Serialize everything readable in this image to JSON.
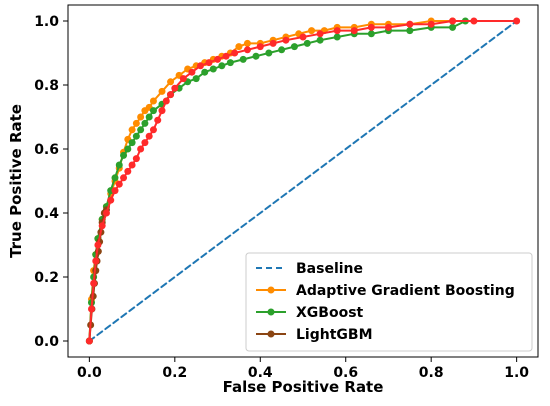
{
  "chart_data": {
    "type": "line",
    "title": "",
    "xlabel": "False Positive Rate",
    "ylabel": "True Positive Rate",
    "xlim": [
      -0.05,
      1.05
    ],
    "ylim": [
      -0.05,
      1.05
    ],
    "x_ticks": [
      "0.0",
      "0.2",
      "0.4",
      "0.6",
      "0.8",
      "1.0"
    ],
    "y_ticks": [
      "0.0",
      "0.2",
      "0.4",
      "0.6",
      "0.8",
      "1.0"
    ],
    "grid": false,
    "legend_position": "lower-right",
    "series": [
      {
        "name": "Baseline",
        "color": "#1f77b4",
        "style": "dashed",
        "markers": false,
        "x": [
          0,
          1
        ],
        "y": [
          0,
          1
        ]
      },
      {
        "name": "Adaptive Gradient Boosting",
        "color": "#ff8c00",
        "style": "solid",
        "markers": true,
        "x": [
          0,
          0.005,
          0.01,
          0.015,
          0.02,
          0.03,
          0.04,
          0.05,
          0.06,
          0.07,
          0.08,
          0.09,
          0.1,
          0.11,
          0.12,
          0.13,
          0.14,
          0.15,
          0.17,
          0.19,
          0.21,
          0.23,
          0.25,
          0.27,
          0.29,
          0.31,
          0.33,
          0.35,
          0.37,
          0.4,
          0.43,
          0.46,
          0.49,
          0.52,
          0.55,
          0.58,
          0.62,
          0.66,
          0.7,
          0.75,
          0.8,
          0.85
        ],
        "y": [
          0,
          0.13,
          0.22,
          0.27,
          0.32,
          0.38,
          0.42,
          0.46,
          0.5,
          0.54,
          0.59,
          0.63,
          0.66,
          0.68,
          0.7,
          0.72,
          0.73,
          0.75,
          0.78,
          0.81,
          0.83,
          0.85,
          0.86,
          0.87,
          0.88,
          0.89,
          0.9,
          0.92,
          0.93,
          0.93,
          0.94,
          0.95,
          0.96,
          0.97,
          0.97,
          0.98,
          0.98,
          0.99,
          0.99,
          0.99,
          1.0,
          1.0
        ]
      },
      {
        "name": "XGBoost",
        "color": "#2ca02c",
        "style": "solid",
        "markers": true,
        "x": [
          0,
          0.005,
          0.01,
          0.015,
          0.02,
          0.03,
          0.04,
          0.05,
          0.06,
          0.07,
          0.08,
          0.09,
          0.1,
          0.11,
          0.12,
          0.13,
          0.14,
          0.15,
          0.17,
          0.19,
          0.21,
          0.23,
          0.25,
          0.27,
          0.29,
          0.31,
          0.33,
          0.36,
          0.39,
          0.42,
          0.45,
          0.48,
          0.51,
          0.54,
          0.58,
          0.62,
          0.66,
          0.7,
          0.75,
          0.8,
          0.85,
          0.88
        ],
        "y": [
          0,
          0.12,
          0.2,
          0.27,
          0.32,
          0.38,
          0.42,
          0.47,
          0.51,
          0.55,
          0.58,
          0.6,
          0.62,
          0.64,
          0.66,
          0.68,
          0.7,
          0.72,
          0.74,
          0.77,
          0.79,
          0.81,
          0.82,
          0.84,
          0.85,
          0.86,
          0.87,
          0.88,
          0.89,
          0.9,
          0.91,
          0.92,
          0.93,
          0.94,
          0.95,
          0.96,
          0.96,
          0.97,
          0.97,
          0.98,
          0.98,
          1.0
        ]
      },
      {
        "name": "LightGBM",
        "color": "#8b4513",
        "style": "solid",
        "markers": true,
        "x": [
          0,
          0.003,
          0.006,
          0.009,
          0.012,
          0.015,
          0.018,
          0.021,
          0.024,
          0.027,
          0.03,
          0.035,
          0.04
        ],
        "y": [
          0,
          0.05,
          0.1,
          0.14,
          0.18,
          0.22,
          0.25,
          0.28,
          0.31,
          0.34,
          0.37,
          0.4,
          0.41
        ]
      },
      {
        "name": "",
        "color": "#ff2a2a",
        "style": "solid",
        "markers": true,
        "x": [
          0,
          0.005,
          0.01,
          0.015,
          0.02,
          0.03,
          0.04,
          0.05,
          0.06,
          0.07,
          0.08,
          0.09,
          0.1,
          0.11,
          0.12,
          0.13,
          0.14,
          0.15,
          0.16,
          0.17,
          0.18,
          0.19,
          0.2,
          0.22,
          0.24,
          0.26,
          0.28,
          0.3,
          0.32,
          0.34,
          0.37,
          0.4,
          0.43,
          0.46,
          0.5,
          0.54,
          0.58,
          0.62,
          0.66,
          0.7,
          0.75,
          0.8,
          0.85,
          0.9,
          1.0
        ],
        "y": [
          0,
          0.1,
          0.18,
          0.25,
          0.3,
          0.36,
          0.4,
          0.44,
          0.47,
          0.49,
          0.51,
          0.53,
          0.55,
          0.57,
          0.6,
          0.62,
          0.64,
          0.66,
          0.69,
          0.72,
          0.75,
          0.77,
          0.79,
          0.82,
          0.84,
          0.86,
          0.87,
          0.88,
          0.89,
          0.9,
          0.91,
          0.92,
          0.93,
          0.94,
          0.95,
          0.96,
          0.97,
          0.97,
          0.98,
          0.98,
          0.99,
          0.99,
          1.0,
          1.0,
          1.0
        ]
      }
    ]
  }
}
